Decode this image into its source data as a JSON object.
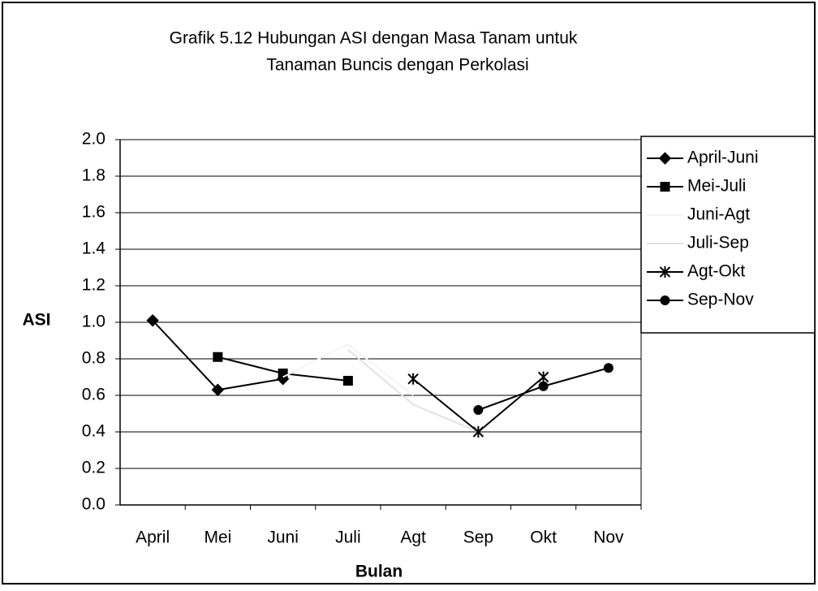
{
  "chart_data": {
    "type": "line",
    "title": "Grafik 5.12 Hubungan ASI dengan Masa Tanam untuk",
    "subtitle": "Tanaman  Buncis dengan Perkolasi",
    "y_label": "ASI",
    "x_label": "Bulan",
    "categories": [
      "April",
      "Mei",
      "Juni",
      "Juli",
      "Agt",
      "Sep",
      "Okt",
      "Nov"
    ],
    "series": [
      {
        "name": "April-Juni",
        "color": "#000000",
        "marker": "diamond",
        "values": [
          1.01,
          0.63,
          0.69,
          null,
          null,
          null,
          null,
          null
        ]
      },
      {
        "name": "Mei-Juli",
        "color": "#000000",
        "marker": "square",
        "values": [
          null,
          0.81,
          0.72,
          0.68,
          null,
          null,
          null,
          null
        ]
      },
      {
        "name": "Juni-Agt",
        "color": "#f4f4f4",
        "marker": "none",
        "values": [
          null,
          null,
          0.7,
          0.88,
          0.6,
          null,
          null,
          null
        ]
      },
      {
        "name": "Juli-Sep",
        "color": "#e2e2e2",
        "marker": "none",
        "values": [
          null,
          null,
          null,
          0.85,
          0.55,
          0.4,
          null,
          null
        ]
      },
      {
        "name": "Agt-Okt",
        "color": "#000000",
        "marker": "star",
        "values": [
          null,
          null,
          null,
          null,
          0.69,
          0.4,
          0.7,
          null
        ]
      },
      {
        "name": "Sep-Nov",
        "color": "#000000",
        "marker": "circle",
        "values": [
          null,
          null,
          null,
          null,
          null,
          0.52,
          0.65,
          0.75
        ]
      }
    ],
    "ylim": [
      0,
      2
    ],
    "yticks": [
      {
        "value": 0,
        "label": "0.0"
      },
      {
        "value": 0.2,
        "label": "0.2"
      },
      {
        "value": 0.4,
        "label": "0.4"
      },
      {
        "value": 0.6,
        "label": "0.6"
      },
      {
        "value": 0.8,
        "label": "0.8"
      },
      {
        "value": 1,
        "label": "1.0"
      },
      {
        "value": 1.2,
        "label": "1.2"
      },
      {
        "value": 1.4,
        "label": "1.4"
      },
      {
        "value": 1.6,
        "label": "1.6"
      },
      {
        "value": 1.8,
        "label": "1.8"
      },
      {
        "value": 2,
        "label": "2.0"
      }
    ],
    "grid": true,
    "legend": "right"
  }
}
